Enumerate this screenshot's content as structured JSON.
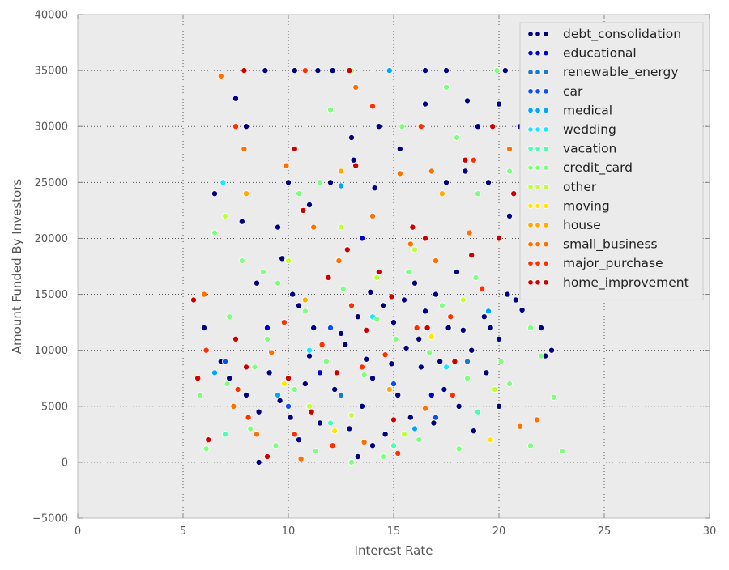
{
  "chart_data": {
    "type": "scatter",
    "title": "",
    "xlabel": "Interest Rate",
    "ylabel": "Amount Funded By Investors",
    "xlim": [
      0,
      30
    ],
    "ylim": [
      -5000,
      40000
    ],
    "xticks": [
      0,
      5,
      10,
      15,
      20,
      25,
      30
    ],
    "yticks": [
      -5000,
      0,
      5000,
      10000,
      15000,
      20000,
      25000,
      30000,
      35000,
      40000
    ],
    "xtick_labels": [
      "0",
      "5",
      "10",
      "15",
      "20",
      "25",
      "30"
    ],
    "ytick_labels": [
      "−5000",
      "0",
      "5000",
      "10000",
      "15000",
      "20000",
      "25000",
      "30000",
      "35000",
      "40000"
    ],
    "grid": true,
    "legend_position": "top-right",
    "background_color": "#ebebeb",
    "series": [
      {
        "name": "debt_consolidation",
        "color": "#000080",
        "points": [
          [
            7.5,
            32500
          ],
          [
            8.9,
            35000
          ],
          [
            10.3,
            35000
          ],
          [
            11.4,
            35000
          ],
          [
            12.1,
            35000
          ],
          [
            13.0,
            29000
          ],
          [
            14.3,
            30000
          ],
          [
            15.3,
            28000
          ],
          [
            16.5,
            35000
          ],
          [
            17.5,
            35000
          ],
          [
            18.5,
            32300
          ],
          [
            19.0,
            30000
          ],
          [
            20.0,
            32000
          ],
          [
            20.3,
            35000
          ],
          [
            21.0,
            30000
          ],
          [
            8.0,
            30000
          ],
          [
            9.5,
            21000
          ],
          [
            10.0,
            25000
          ],
          [
            11.0,
            23000
          ],
          [
            12.0,
            25000
          ],
          [
            13.1,
            27000
          ],
          [
            14.1,
            24500
          ],
          [
            16.5,
            32000
          ],
          [
            17.5,
            25000
          ],
          [
            18.4,
            26000
          ],
          [
            19.5,
            25000
          ],
          [
            20.5,
            22000
          ],
          [
            21.5,
            24500
          ],
          [
            22.0,
            12000
          ],
          [
            22.5,
            10000
          ],
          [
            6.5,
            24000
          ],
          [
            7.8,
            21500
          ],
          [
            8.5,
            16000
          ],
          [
            9.7,
            18200
          ],
          [
            10.2,
            15000
          ],
          [
            10.5,
            14000
          ],
          [
            11.2,
            12000
          ],
          [
            12.5,
            11500
          ],
          [
            13.3,
            13000
          ],
          [
            13.9,
            15200
          ],
          [
            14.5,
            14000
          ],
          [
            15.0,
            12500
          ],
          [
            15.5,
            14500
          ],
          [
            16.0,
            16000
          ],
          [
            16.5,
            13500
          ],
          [
            17.0,
            15000
          ],
          [
            17.6,
            12000
          ],
          [
            18.0,
            17000
          ],
          [
            18.7,
            10000
          ],
          [
            19.3,
            13000
          ],
          [
            20.0,
            11000
          ],
          [
            20.8,
            14500
          ],
          [
            21.3,
            18000
          ],
          [
            22.2,
            9500
          ],
          [
            6.0,
            12000
          ],
          [
            6.8,
            9000
          ],
          [
            7.2,
            7500
          ],
          [
            8.0,
            6000
          ],
          [
            8.6,
            4500
          ],
          [
            9.1,
            8000
          ],
          [
            9.6,
            5500
          ],
          [
            10.1,
            4000
          ],
          [
            10.8,
            7000
          ],
          [
            11.5,
            3500
          ],
          [
            12.2,
            6500
          ],
          [
            12.9,
            3000
          ],
          [
            13.5,
            5000
          ],
          [
            14.0,
            7500
          ],
          [
            14.6,
            2500
          ],
          [
            15.2,
            6000
          ],
          [
            15.8,
            4000
          ],
          [
            16.3,
            8500
          ],
          [
            16.9,
            3500
          ],
          [
            17.4,
            6500
          ],
          [
            18.1,
            5000
          ],
          [
            18.8,
            2800
          ],
          [
            19.4,
            8000
          ],
          [
            20.0,
            5000
          ],
          [
            8.6,
            0
          ],
          [
            13.3,
            500
          ],
          [
            14.0,
            1500
          ],
          [
            10.5,
            2000
          ],
          [
            11.0,
            9500
          ],
          [
            12.7,
            10500
          ],
          [
            13.7,
            9200
          ],
          [
            14.9,
            8800
          ],
          [
            15.6,
            10200
          ],
          [
            16.2,
            11000
          ],
          [
            17.2,
            9000
          ],
          [
            18.3,
            11800
          ],
          [
            19.6,
            12000
          ],
          [
            20.4,
            15000
          ],
          [
            21.1,
            13600
          ]
        ]
      },
      {
        "name": "educational",
        "color": "#0000cd",
        "points": [
          [
            9.0,
            12000
          ],
          [
            11.5,
            8000
          ],
          [
            13.5,
            20000
          ],
          [
            16.8,
            6000
          ]
        ]
      },
      {
        "name": "renewable_energy",
        "color": "#1e78c8",
        "points": [
          [
            12.5,
            6000
          ],
          [
            18.5,
            9000
          ]
        ]
      },
      {
        "name": "car",
        "color": "#0a50f0",
        "points": [
          [
            7.0,
            9000
          ],
          [
            10.0,
            5000
          ],
          [
            12.0,
            12000
          ],
          [
            15.0,
            7000
          ],
          [
            17.0,
            4000
          ]
        ]
      },
      {
        "name": "medical",
        "color": "#00a5ff",
        "points": [
          [
            6.5,
            8000
          ],
          [
            9.5,
            6000
          ],
          [
            12.5,
            24700
          ],
          [
            14.8,
            35000
          ],
          [
            16.0,
            3000
          ],
          [
            19.5,
            13500
          ]
        ]
      },
      {
        "name": "wedding",
        "color": "#19e6ff",
        "points": [
          [
            6.9,
            25000
          ],
          [
            11.0,
            10000
          ],
          [
            14.0,
            13000
          ],
          [
            17.5,
            8500
          ]
        ]
      },
      {
        "name": "vacation",
        "color": "#48ffb4",
        "points": [
          [
            7.0,
            2500
          ],
          [
            12.0,
            3500
          ],
          [
            15.0,
            1500
          ],
          [
            19.0,
            4500
          ]
        ]
      },
      {
        "name": "credit_card",
        "color": "#7fff7f",
        "points": [
          [
            5.8,
            6000
          ],
          [
            6.5,
            20500
          ],
          [
            7.8,
            18000
          ],
          [
            8.8,
            17000
          ],
          [
            9.5,
            16000
          ],
          [
            10.5,
            24000
          ],
          [
            11.5,
            25000
          ],
          [
            12.0,
            31500
          ],
          [
            13.0,
            35000
          ],
          [
            15.4,
            30000
          ],
          [
            17.5,
            33500
          ],
          [
            18.0,
            29000
          ],
          [
            19.0,
            24000
          ],
          [
            19.9,
            35000
          ],
          [
            20.5,
            26000
          ],
          [
            21.5,
            12000
          ],
          [
            21.5,
            1500
          ],
          [
            22.0,
            9500
          ],
          [
            23.0,
            1000
          ],
          [
            22.6,
            5800
          ],
          [
            20.5,
            7000
          ],
          [
            6.1,
            1200
          ],
          [
            8.2,
            3000
          ],
          [
            9.4,
            1500
          ],
          [
            11.3,
            1000
          ],
          [
            13.0,
            0
          ],
          [
            14.5,
            500
          ],
          [
            16.2,
            2000
          ],
          [
            18.1,
            1200
          ],
          [
            7.2,
            13000
          ],
          [
            9.0,
            11000
          ],
          [
            10.8,
            13500
          ],
          [
            12.6,
            15500
          ],
          [
            14.2,
            12800
          ],
          [
            15.7,
            17000
          ],
          [
            17.3,
            14000
          ],
          [
            18.9,
            16500
          ],
          [
            20.1,
            9000
          ],
          [
            7.1,
            7000
          ],
          [
            8.4,
            8500
          ],
          [
            10.3,
            6500
          ],
          [
            11.8,
            9000
          ],
          [
            13.6,
            7800
          ],
          [
            15.1,
            11000
          ],
          [
            16.7,
            9800
          ],
          [
            18.5,
            7500
          ]
        ]
      },
      {
        "name": "other",
        "color": "#c0ff37",
        "points": [
          [
            7.0,
            22000
          ],
          [
            10.0,
            18000
          ],
          [
            12.5,
            21000
          ],
          [
            14.2,
            16500
          ],
          [
            16.0,
            19000
          ],
          [
            18.3,
            14500
          ],
          [
            19.8,
            6500
          ],
          [
            11.0,
            5000
          ],
          [
            13.0,
            4200
          ],
          [
            15.5,
            2500
          ]
        ]
      },
      {
        "name": "moving",
        "color": "#ffe600",
        "points": [
          [
            9.8,
            7000
          ],
          [
            12.2,
            2800
          ],
          [
            16.8,
            11200
          ],
          [
            19.6,
            2000
          ]
        ]
      },
      {
        "name": "house",
        "color": "#ffaa00",
        "points": [
          [
            8.0,
            24000
          ],
          [
            10.8,
            14500
          ],
          [
            12.5,
            26000
          ],
          [
            14.8,
            6500
          ],
          [
            17.3,
            24000
          ]
        ]
      },
      {
        "name": "small_business",
        "color": "#ff7000",
        "points": [
          [
            6.8,
            34500
          ],
          [
            7.9,
            28000
          ],
          [
            9.9,
            26500
          ],
          [
            13.2,
            33500
          ],
          [
            15.3,
            25800
          ],
          [
            16.8,
            26000
          ],
          [
            20.5,
            28000
          ],
          [
            21.8,
            3800
          ],
          [
            21.0,
            3200
          ],
          [
            6.0,
            15000
          ],
          [
            7.4,
            5000
          ],
          [
            9.2,
            9800
          ],
          [
            11.2,
            21000
          ],
          [
            12.4,
            18000
          ],
          [
            14.0,
            22000
          ],
          [
            15.8,
            19500
          ],
          [
            17.0,
            18000
          ],
          [
            18.6,
            20500
          ],
          [
            8.5,
            2500
          ],
          [
            10.6,
            300
          ],
          [
            13.6,
            1800
          ],
          [
            16.5,
            4800
          ]
        ]
      },
      {
        "name": "major_purchase",
        "color": "#ff3000",
        "points": [
          [
            7.5,
            30000
          ],
          [
            10.8,
            35000
          ],
          [
            13.5,
            8500
          ],
          [
            14.0,
            31800
          ],
          [
            16.3,
            30000
          ],
          [
            18.8,
            27000
          ],
          [
            6.1,
            10000
          ],
          [
            7.6,
            6500
          ],
          [
            9.8,
            12500
          ],
          [
            11.6,
            10500
          ],
          [
            13.0,
            14000
          ],
          [
            14.6,
            9600
          ],
          [
            16.1,
            12000
          ],
          [
            17.7,
            13000
          ],
          [
            19.2,
            15500
          ],
          [
            8.1,
            4000
          ],
          [
            10.3,
            2500
          ],
          [
            12.1,
            1500
          ],
          [
            15.2,
            800
          ],
          [
            17.8,
            6000
          ]
        ]
      },
      {
        "name": "home_improvement",
        "color": "#cd0000",
        "points": [
          [
            5.5,
            14500
          ],
          [
            5.7,
            7500
          ],
          [
            7.9,
            35000
          ],
          [
            10.3,
            28000
          ],
          [
            13.2,
            26500
          ],
          [
            12.9,
            35000
          ],
          [
            16.5,
            20000
          ],
          [
            18.4,
            27000
          ],
          [
            20.7,
            24000
          ],
          [
            21.3,
            30000
          ],
          [
            6.2,
            2000
          ],
          [
            7.5,
            11000
          ],
          [
            8.0,
            8500
          ],
          [
            9.0,
            500
          ],
          [
            10.0,
            7500
          ],
          [
            10.7,
            22500
          ],
          [
            11.9,
            16500
          ],
          [
            12.8,
            19000
          ],
          [
            13.7,
            11800
          ],
          [
            14.3,
            17000
          ],
          [
            15.0,
            3800
          ],
          [
            15.9,
            21000
          ],
          [
            16.6,
            12000
          ],
          [
            17.9,
            9000
          ],
          [
            18.7,
            18500
          ],
          [
            19.7,
            30000
          ],
          [
            20.0,
            20000
          ],
          [
            11.1,
            4500
          ],
          [
            12.3,
            8000
          ],
          [
            14.9,
            14800
          ]
        ]
      }
    ]
  }
}
